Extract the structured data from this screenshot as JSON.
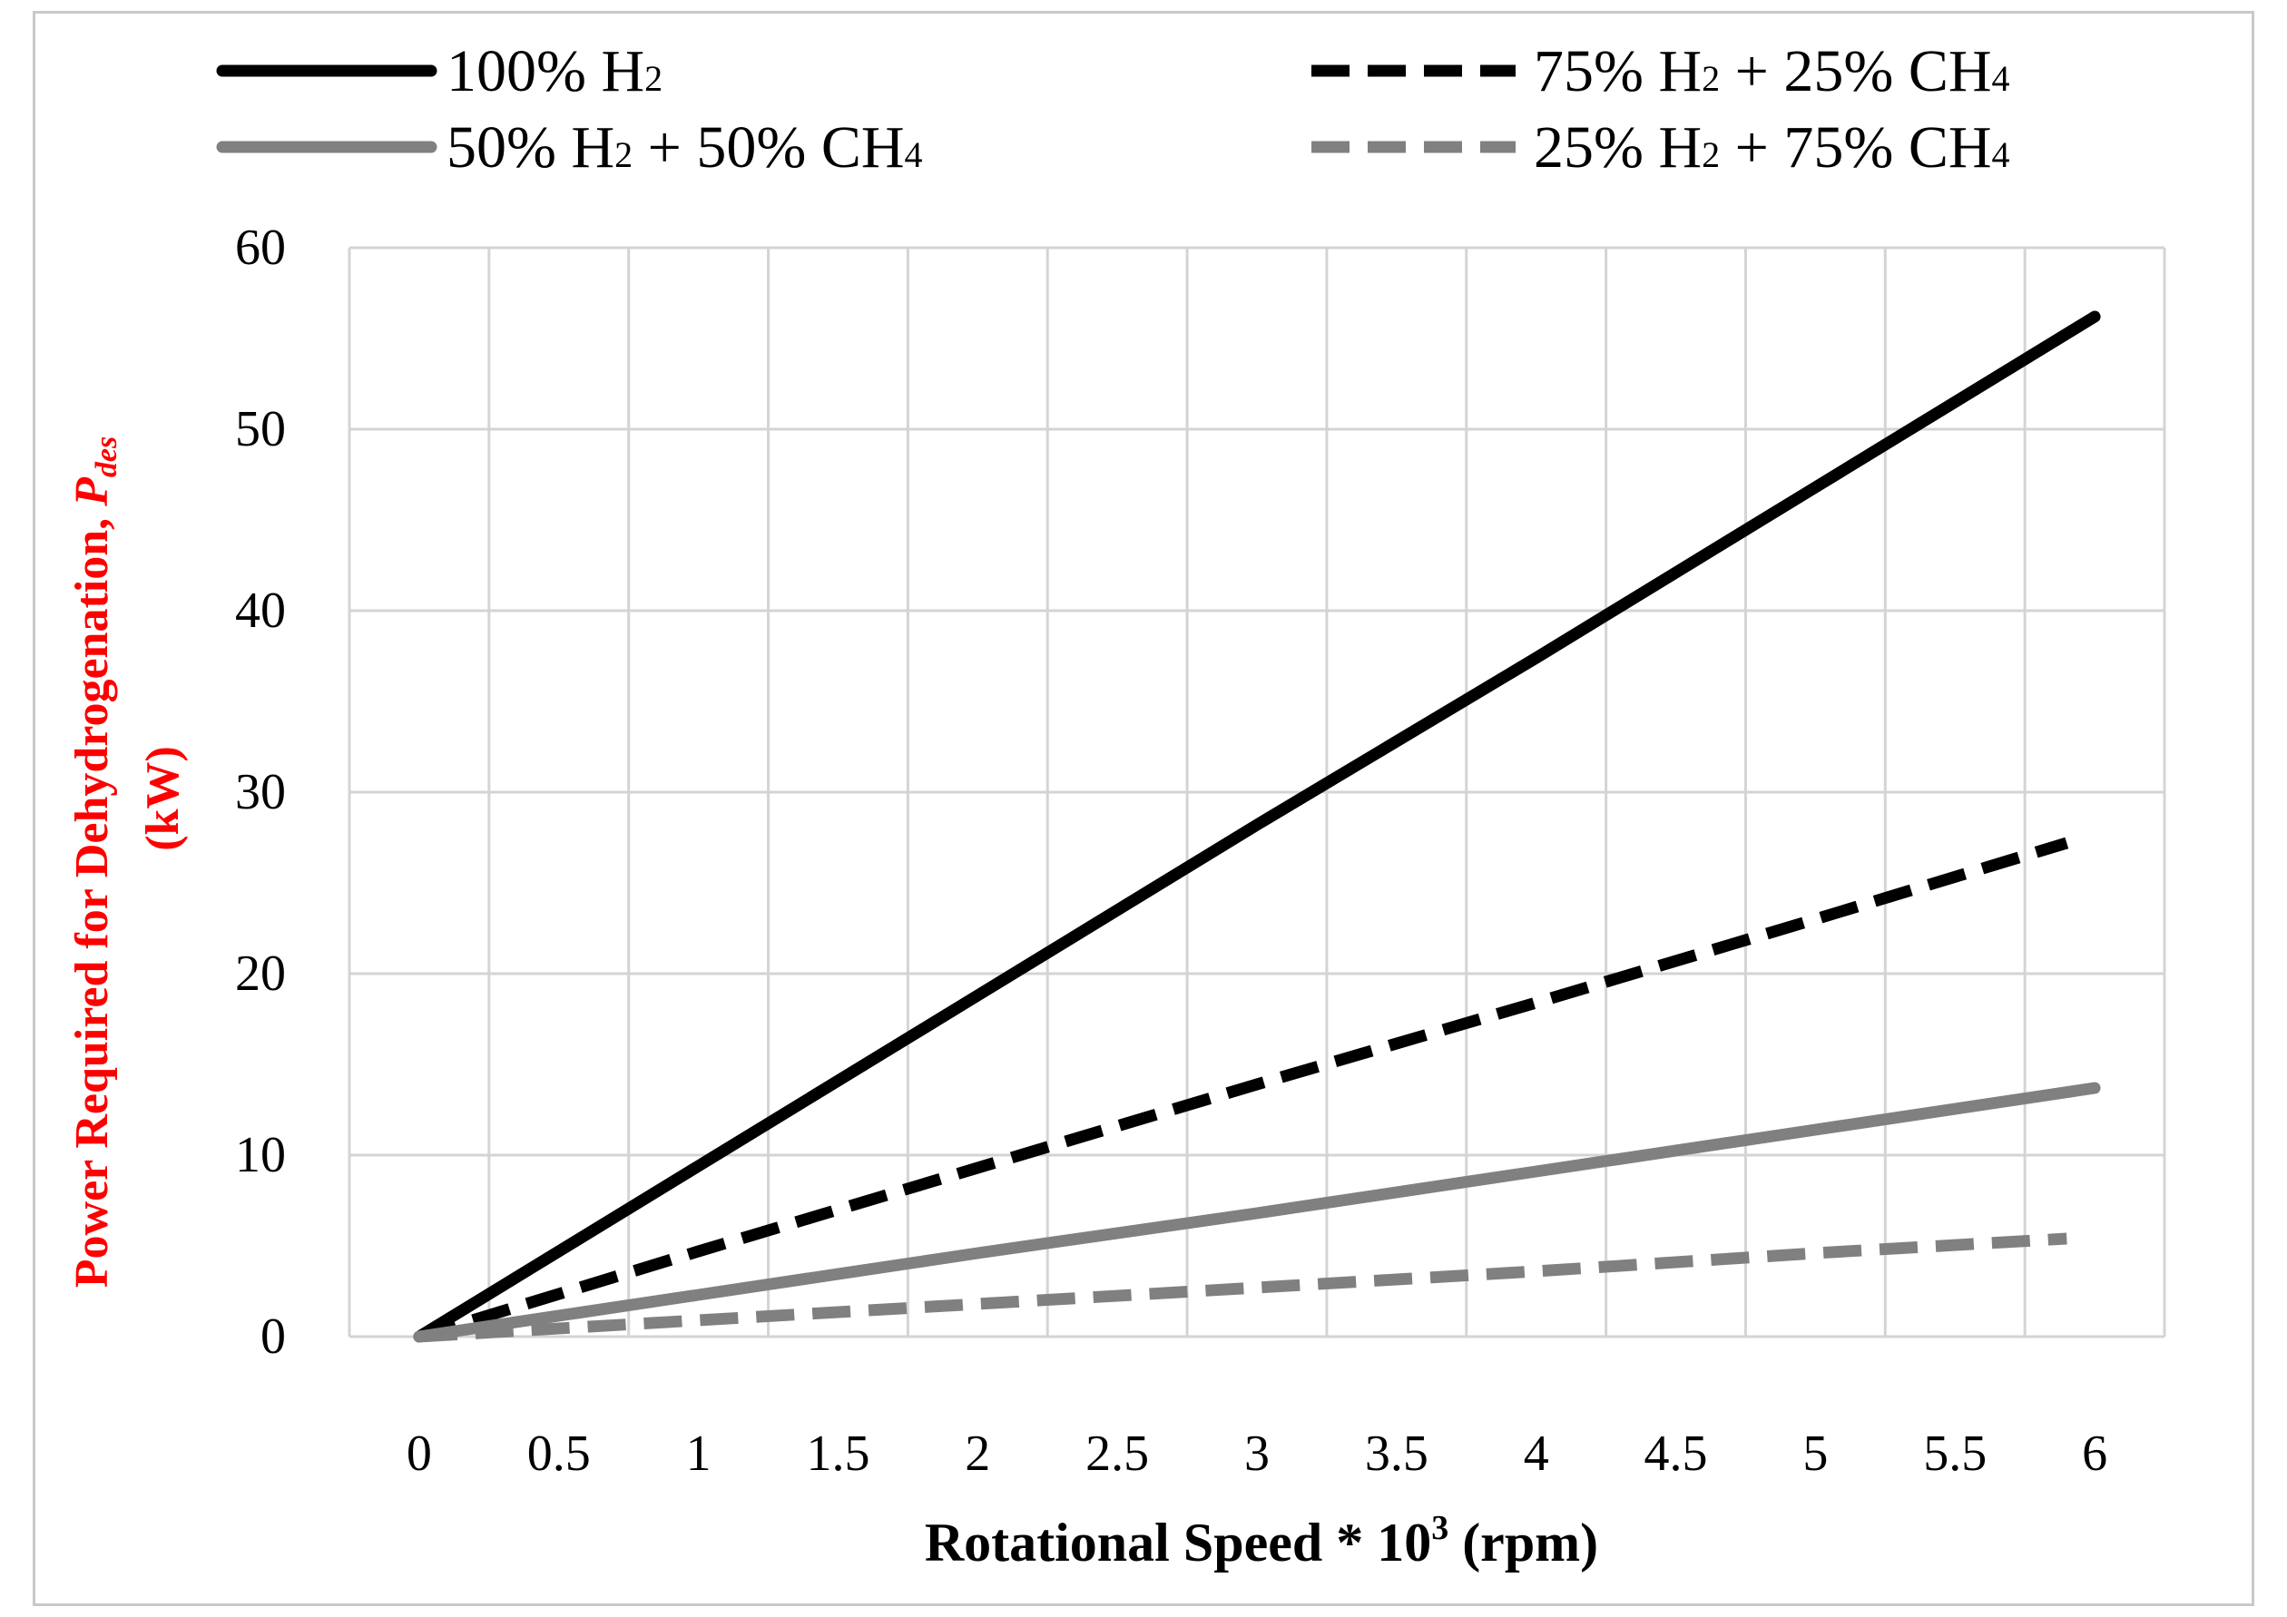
{
  "chart_data": {
    "type": "line",
    "title": "",
    "xlabel": "Rotational Speed * 10³ (rpm)",
    "xlabel_parts": {
      "main": "Rotational Speed * 10",
      "sup": "3",
      "unit": " (rpm)"
    },
    "ylabel_line1_main": "Power Required for Dehydrogenation, ",
    "ylabel_symbol": "P",
    "ylabel_subscript": "des",
    "ylabel_line2": "(kW)",
    "ylim": [
      0,
      60
    ],
    "xlim": [
      0,
      6
    ],
    "y_ticks": [
      0,
      10,
      20,
      30,
      40,
      50,
      60
    ],
    "x_tick_labels": [
      "0",
      "0.5",
      "1",
      "1.5",
      "2",
      "2.5",
      "3",
      "3.5",
      "4",
      "4.5",
      "5",
      "5.5",
      "6"
    ],
    "grid": true,
    "legend_position": "top",
    "series": [
      {
        "name": "100% H2",
        "label_parts": [
          "100% H",
          "2"
        ],
        "color": "#000000",
        "dash": "solid",
        "x": [
          0,
          1,
          2,
          3,
          4,
          5,
          6
        ],
        "y": [
          0,
          9.4,
          18.8,
          28.2,
          37.4,
          46.8,
          56.2
        ]
      },
      {
        "name": "75% H2 + 25% CH4",
        "label_parts": [
          "75% H",
          "2",
          " + 25% CH",
          "4"
        ],
        "color": "#000000",
        "dash": "dashed",
        "x": [
          0,
          1,
          2,
          3,
          4,
          5,
          5.9
        ],
        "y": [
          0,
          4.7,
          9.3,
          13.9,
          18.4,
          23.0,
          27.2
        ]
      },
      {
        "name": "50% H2 + 50% CH4",
        "label_parts": [
          "50% H",
          "2",
          " + 50% CH",
          "4"
        ],
        "color": "#808080",
        "dash": "solid",
        "x": [
          0,
          1,
          2,
          3,
          4,
          5,
          6
        ],
        "y": [
          0,
          2.3,
          4.6,
          6.8,
          9.1,
          11.4,
          13.7
        ]
      },
      {
        "name": "25% H2 + 75% CH4",
        "label_parts": [
          "25% H",
          "2",
          " + 75% CH",
          "4"
        ],
        "color": "#808080",
        "dash": "dashed",
        "x": [
          0,
          1,
          2,
          3,
          4,
          5,
          5.9
        ],
        "y": [
          0,
          0.9,
          1.8,
          2.7,
          3.6,
          4.6,
          5.4
        ]
      }
    ]
  }
}
